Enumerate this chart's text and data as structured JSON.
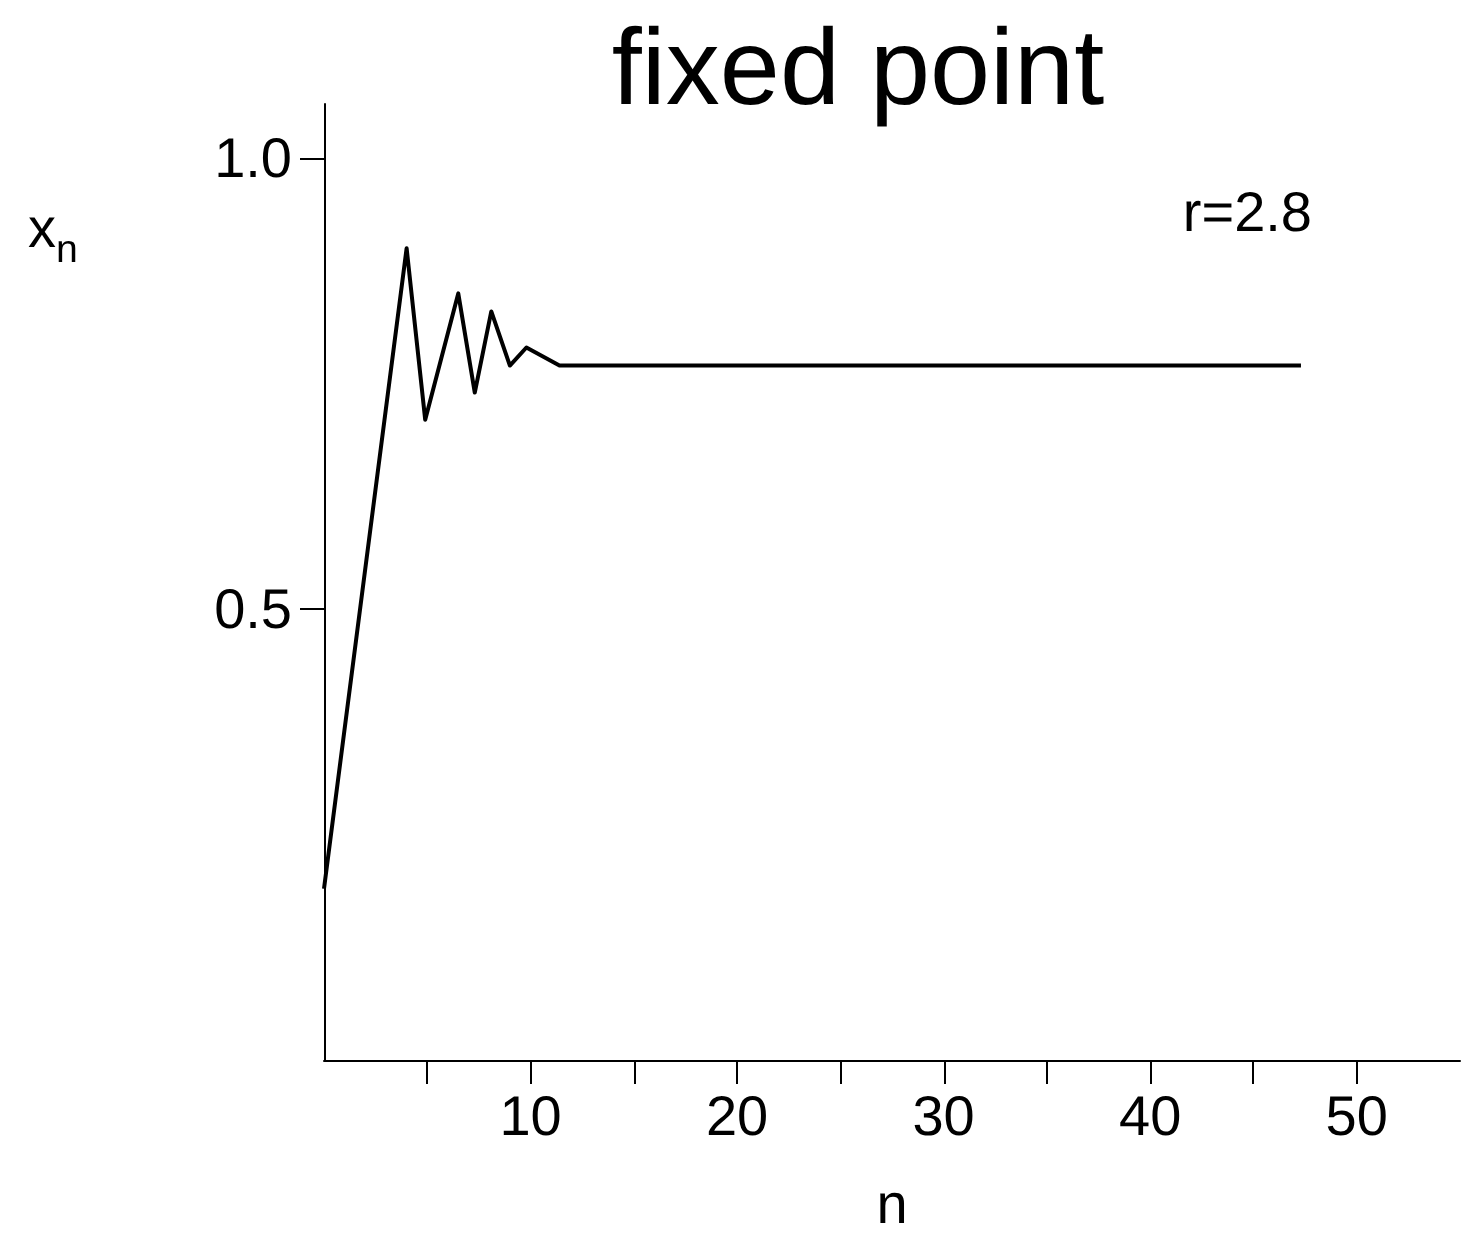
{
  "chart_data": {
    "type": "line",
    "title": "fixed point",
    "xlabel": "n",
    "ylabel": "x$_{n}$",
    "annotations": [
      "r=2.8"
    ],
    "series": [
      {
        "color": "#000000",
        "x": [
          0,
          4.0,
          4.9,
          6.5,
          7.3,
          8.1,
          9.0,
          9.8,
          11.4,
          47.3
        ],
        "values": [
          0.19,
          0.9,
          0.71,
          0.85,
          0.74,
          0.83,
          0.77,
          0.79,
          0.77,
          0.77
        ]
      }
    ],
    "xlim": [
      0,
      55
    ],
    "xticks": [
      {
        "value": 5,
        "label": null
      },
      10,
      {
        "value": 15,
        "label": null
      },
      20,
      {
        "value": 25,
        "label": null
      },
      30,
      {
        "value": 35,
        "label": null
      },
      40,
      {
        "value": 45,
        "label": null
      },
      50
    ],
    "ylim": [
      0,
      1.06
    ],
    "yticks": [
      {
        "value": 0.5,
        "label": "0.5"
      },
      {
        "value": 1,
        "label": "1.0"
      }
    ],
    "grid": false,
    "marker": "none",
    "line_style": "solid"
  }
}
